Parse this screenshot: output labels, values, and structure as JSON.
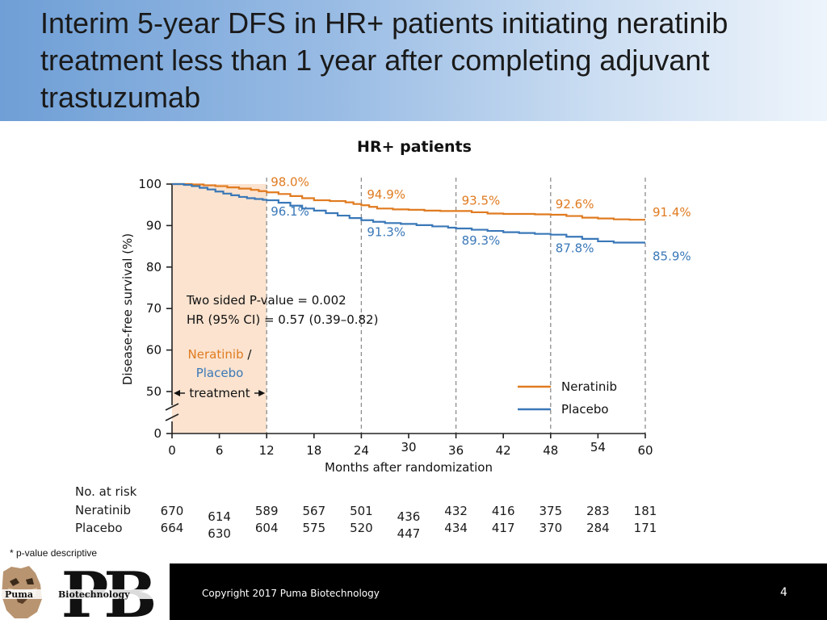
{
  "slide": {
    "title": "Interim 5-year DFS in HR+ patients initiating neratinib treatment less than 1 year after completing adjuvant trastuzumab",
    "footnote": "* p-value descriptive",
    "copyright": "Copyright 2017 Puma Biotechnology",
    "page_number": "4",
    "logo": {
      "left_word": "Puma",
      "right_word": "Biotechnology",
      "initials": "PB",
      "icon": "puma-head-icon"
    }
  },
  "chart_data": {
    "type": "line",
    "chart_style": "kaplan-meier step plot",
    "title": "HR+ patients",
    "xlabel": "Months after randomization",
    "ylabel": "Disease-free survival (%)",
    "xlim": [
      0,
      60
    ],
    "ylim": [
      0,
      100
    ],
    "y_axis_break": "between 0 and 50",
    "x_ticks": [
      "0",
      "6",
      "12",
      "18",
      "24",
      "30",
      "36",
      "42",
      "48",
      "54",
      "60"
    ],
    "y_ticks": [
      "0",
      "50",
      "60",
      "70",
      "80",
      "90",
      "100"
    ],
    "vertical_reference_lines_x": [
      12,
      24,
      36,
      48,
      60
    ],
    "treatment_period": {
      "x_range": [
        0,
        12
      ],
      "label_parts": [
        "Neratinib",
        " /",
        "Placebo",
        "treatment"
      ],
      "color": "#fbe3cf"
    },
    "annotation": [
      "Two sided P-value = 0.002",
      "HR (95% CI) = 0.57 (0.39–0.82)"
    ],
    "legend": {
      "placement": "bottom-right",
      "entries": [
        "Neratinib",
        "Placebo"
      ]
    },
    "series": [
      {
        "name": "Neratinib",
        "color": "#e07b20",
        "x": [
          0,
          2.5,
          4,
          5.5,
          7,
          8.5,
          10,
          11,
          12,
          13.5,
          15,
          16.5,
          18,
          20,
          22,
          23,
          24,
          25,
          26,
          28,
          30,
          32,
          34,
          36,
          38,
          40,
          42,
          44,
          46,
          48,
          50,
          52,
          54,
          56,
          58,
          60
        ],
        "y": [
          100,
          99.9,
          99.7,
          99.5,
          99.2,
          98.9,
          98.6,
          98.3,
          98.0,
          97.6,
          97.1,
          96.6,
          96.1,
          95.9,
          95.6,
          95.2,
          94.9,
          94.5,
          94.1,
          93.9,
          93.8,
          93.6,
          93.5,
          93.5,
          93.2,
          92.9,
          92.8,
          92.8,
          92.7,
          92.6,
          92.3,
          91.9,
          91.7,
          91.5,
          91.4,
          91.4
        ],
        "data_labels": [
          {
            "x": 12,
            "label": "98.0%"
          },
          {
            "x": 24,
            "label": "94.9%"
          },
          {
            "x": 36,
            "label": "93.5%"
          },
          {
            "x": 48,
            "label": "92.6%"
          },
          {
            "x": 60,
            "label": "91.4%"
          }
        ]
      },
      {
        "name": "Placebo",
        "color": "#3a78b8",
        "x": [
          0,
          1.5,
          2.5,
          3.5,
          4.5,
          5.5,
          6.5,
          7.5,
          8.5,
          9.5,
          10.5,
          11.5,
          12,
          13.5,
          15,
          16.5,
          18,
          19.5,
          21,
          22.5,
          24,
          25.5,
          27,
          29,
          31,
          33,
          35,
          36,
          38,
          40,
          42,
          44,
          46,
          48,
          50,
          52,
          54,
          56,
          58,
          60
        ],
        "y": [
          100,
          99.8,
          99.5,
          99.1,
          98.7,
          98.2,
          97.7,
          97.3,
          96.9,
          96.6,
          96.4,
          96.2,
          96.1,
          95.5,
          94.8,
          94.1,
          93.6,
          93.0,
          92.4,
          91.8,
          91.3,
          90.9,
          90.6,
          90.4,
          90.1,
          89.8,
          89.5,
          89.3,
          89.0,
          88.7,
          88.4,
          88.2,
          88.0,
          87.8,
          87.3,
          86.8,
          86.2,
          85.9,
          85.9,
          85.9
        ],
        "data_labels": [
          {
            "x": 12,
            "label": "96.1%"
          },
          {
            "x": 24,
            "label": "91.3%"
          },
          {
            "x": 36,
            "label": "89.3%"
          },
          {
            "x": 48,
            "label": "87.8%"
          },
          {
            "x": 60,
            "label": "85.9%"
          }
        ]
      }
    ]
  },
  "risk_table": {
    "title": "No. at risk",
    "rows": [
      {
        "label": "Neratinib",
        "values": [
          "670",
          "614",
          "589",
          "567",
          "501",
          "436",
          "432",
          "416",
          "375",
          "283",
          "181"
        ]
      },
      {
        "label": "Placebo",
        "values": [
          "664",
          "630",
          "604",
          "575",
          "520",
          "447",
          "434",
          "417",
          "370",
          "284",
          "171"
        ]
      }
    ]
  }
}
